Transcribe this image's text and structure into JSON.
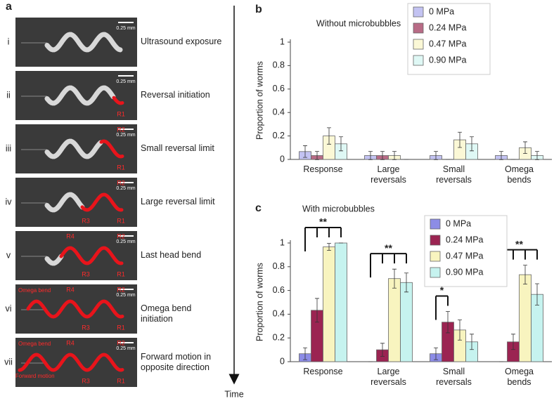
{
  "panel_a": {
    "label": "a",
    "time_label": "Time",
    "rows": [
      {
        "numeral": "i",
        "caption": "Ultrasound exposure",
        "scale": "0.25 mm",
        "marks": []
      },
      {
        "numeral": "ii",
        "caption": "Reversal initiation",
        "scale": "0.25 mm",
        "marks": [
          "R1"
        ]
      },
      {
        "numeral": "iii",
        "caption": "Small reversal limit",
        "scale": "0.25 mm",
        "marks": [
          "R2",
          "R1"
        ]
      },
      {
        "numeral": "iv",
        "caption": "Large reversal limit",
        "scale": "0.25 mm",
        "marks": [
          "R2",
          "R3",
          "R1"
        ]
      },
      {
        "numeral": "v",
        "caption": "Last head bend",
        "scale": "0.25 mm",
        "marks": [
          "R4",
          "R2",
          "R3",
          "R1"
        ]
      },
      {
        "numeral": "vi",
        "caption": "Omega bend initiation",
        "scale": "0.25 mm",
        "marks": [
          "Omega bend",
          "R4",
          "R2",
          "R3",
          "R1"
        ]
      },
      {
        "numeral": "vii",
        "caption": "Forward motion in opposite direction",
        "scale": "0.25 mm",
        "marks": [
          "Omega bend",
          "Forward motion",
          "R4",
          "R2",
          "R3",
          "R1"
        ]
      }
    ]
  },
  "chart_data": [
    {
      "type": "bar",
      "panel": "b",
      "title": "Without microbubbles",
      "y_label": "Proportion of worms",
      "categories": [
        "Response",
        "Large reversals",
        "Small reversals",
        "Omega bends"
      ],
      "series": [
        {
          "name": "0 MPa",
          "color": "#c3c3f2",
          "values": [
            0.067,
            0.033,
            0.033,
            0.033
          ],
          "errors": [
            0.05,
            0.035,
            0.035,
            0.035
          ]
        },
        {
          "name": "0.24 MPa",
          "color": "#b86b86",
          "values": [
            0.033,
            0.033,
            0,
            0
          ],
          "errors": [
            0.035,
            0.035,
            0,
            0
          ]
        },
        {
          "name": "0.47 MPa",
          "color": "#fbf8d6",
          "values": [
            0.2,
            0.033,
            0.167,
            0.1
          ],
          "errors": [
            0.07,
            0.035,
            0.065,
            0.05
          ]
        },
        {
          "name": "0.90 MPa",
          "color": "#dff8f5",
          "values": [
            0.133,
            0,
            0.133,
            0.033
          ],
          "errors": [
            0.06,
            0,
            0.06,
            0.035
          ]
        }
      ],
      "ylim": [
        0,
        1
      ],
      "yticks": [
        0,
        0.2,
        0.4,
        0.6,
        0.8,
        1
      ],
      "legend": "top-right"
    },
    {
      "type": "bar",
      "panel": "c",
      "title": "With microbubbles",
      "y_label": "Proportion of worms",
      "categories": [
        "Response",
        "Large reversals",
        "Small reversals",
        "Omega bends"
      ],
      "series": [
        {
          "name": "0 MPa",
          "color": "#8c8ce6",
          "values": [
            0.067,
            0,
            0.067,
            0
          ],
          "errors": [
            0.05,
            0,
            0.05,
            0
          ]
        },
        {
          "name": "0.24 MPa",
          "color": "#9b2452",
          "values": [
            0.433,
            0.1,
            0.333,
            0.167
          ],
          "errors": [
            0.1,
            0.055,
            0.09,
            0.065
          ]
        },
        {
          "name": "0.47 MPa",
          "color": "#f8f4bf",
          "values": [
            0.967,
            0.7,
            0.267,
            0.733
          ],
          "errors": [
            0.03,
            0.08,
            0.085,
            0.08
          ]
        },
        {
          "name": "0.90 MPa",
          "color": "#c6f3ef",
          "values": [
            1,
            0.667,
            0.167,
            0.567
          ],
          "errors": [
            0,
            0.08,
            0.065,
            0.09
          ]
        }
      ],
      "significance": [
        "**",
        "**",
        "*",
        "**"
      ],
      "ylim": [
        0,
        1
      ],
      "yticks": [
        0,
        0.2,
        0.4,
        0.6,
        0.8,
        1
      ],
      "legend": "top-right"
    }
  ]
}
